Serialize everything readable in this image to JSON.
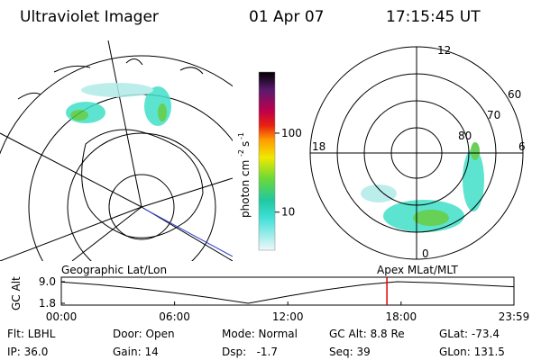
{
  "header": {
    "instrument": "Ultraviolet Imager",
    "date": "01 Apr 07",
    "time": "17:15:45 UT"
  },
  "colorbar": {
    "unit": "photon cm",
    "unit_exp1": "-2",
    "unit_s": "s",
    "unit_exp2": "-1",
    "log": true,
    "lim": [
      3.3,
      594
    ],
    "ticks": [
      100,
      10
    ]
  },
  "geo_map": {
    "label": "Geographic Lat/Lon"
  },
  "polar_map": {
    "label": "Apex MLat/MLT",
    "mlt_labels": [
      "12",
      "18",
      "6",
      "0"
    ],
    "lat_labels": [
      "60",
      "70",
      "80"
    ]
  },
  "altitude_plot": {
    "ylabel": "GC Alt",
    "yticks": [
      {
        "value": 9.0,
        "label": "9.0"
      },
      {
        "value": 1.8,
        "label": "1.8"
      }
    ],
    "ylim": [
      1.8,
      9.0
    ],
    "xlim": [
      0,
      23.98
    ],
    "xticks": [
      {
        "value": 0,
        "label": "00:00"
      },
      {
        "value": 6,
        "label": "06:00"
      },
      {
        "value": 12,
        "label": "12:00"
      },
      {
        "value": 18,
        "label": "18:00"
      },
      {
        "value": 23.98,
        "label": "23:59"
      }
    ],
    "x": [
      0,
      2,
      4,
      6,
      8,
      9.9,
      12,
      14,
      16,
      17.8,
      20,
      22,
      23.98
    ],
    "values": [
      8.9,
      8.0,
      6.8,
      5.3,
      3.6,
      1.8,
      4.2,
      6.3,
      8.0,
      9.0,
      8.6,
      7.9,
      7.3
    ],
    "color": "#000000",
    "marker_x": 17.25,
    "marker_color": "#dd0000"
  },
  "footer": [
    [
      "Flt: LBHL",
      "IP: 36.0"
    ],
    [
      "Door: Open",
      "Gain: 14"
    ],
    [
      "Mode: Normal",
      "Dsp:   -1.7"
    ],
    [
      "GC Alt: 8.8 Re",
      "Seq: 39"
    ],
    [
      "GLat: -73.4",
      "GLon: 131.5"
    ]
  ]
}
